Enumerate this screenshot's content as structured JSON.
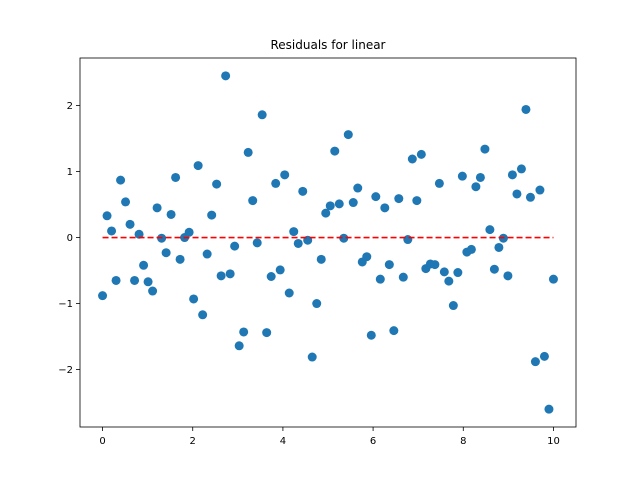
{
  "chart_data": {
    "type": "scatter",
    "title": "Residuals for linear",
    "xlabel": "",
    "ylabel": "",
    "xlim": [
      -0.5,
      10.5
    ],
    "ylim": [
      -2.87,
      2.72
    ],
    "xticks": [
      0,
      2,
      4,
      6,
      8,
      10
    ],
    "yticks": [
      -2,
      -1,
      0,
      1,
      2
    ],
    "xtick_labels": [
      "0",
      "2",
      "4",
      "6",
      "8",
      "10"
    ],
    "ytick_labels": [
      "−2",
      "−1",
      "0",
      "1",
      "2"
    ],
    "grid": false,
    "point_color": "#1f77b4",
    "reference_line": {
      "y": 0,
      "x_range": [
        0,
        10
      ],
      "color": "#ff0000",
      "style": "dashed"
    },
    "x": [
      0.0,
      0.1,
      0.2,
      0.3,
      0.4,
      0.51,
      0.61,
      0.71,
      0.81,
      0.91,
      1.01,
      1.11,
      1.21,
      1.31,
      1.41,
      1.52,
      1.62,
      1.72,
      1.82,
      1.92,
      2.02,
      2.12,
      2.22,
      2.32,
      2.42,
      2.53,
      2.63,
      2.73,
      2.83,
      2.93,
      3.03,
      3.13,
      3.23,
      3.33,
      3.43,
      3.54,
      3.64,
      3.74,
      3.84,
      3.94,
      4.04,
      4.14,
      4.24,
      4.34,
      4.44,
      4.55,
      4.65,
      4.75,
      4.85,
      4.95,
      5.05,
      5.15,
      5.25,
      5.35,
      5.45,
      5.56,
      5.66,
      5.76,
      5.86,
      5.96,
      6.06,
      6.16,
      6.26,
      6.36,
      6.46,
      6.57,
      6.67,
      6.77,
      6.87,
      6.97,
      7.07,
      7.17,
      7.27,
      7.37,
      7.47,
      7.58,
      7.68,
      7.78,
      7.88,
      7.98,
      8.08,
      8.18,
      8.28,
      8.38,
      8.48,
      8.59,
      8.69,
      8.79,
      8.89,
      8.99,
      9.09,
      9.19,
      9.29,
      9.39,
      9.49,
      9.6,
      9.7,
      9.8,
      9.9,
      10.0
    ],
    "y": [
      -0.88,
      0.33,
      0.1,
      -0.65,
      0.87,
      0.54,
      0.2,
      -0.65,
      0.05,
      -0.42,
      -0.67,
      -0.81,
      0.45,
      -0.01,
      -0.23,
      0.35,
      0.91,
      -0.33,
      0.0,
      0.08,
      -0.93,
      1.09,
      -1.17,
      -0.25,
      0.34,
      0.81,
      -0.58,
      2.45,
      -0.55,
      -0.13,
      -1.64,
      -1.43,
      1.29,
      0.56,
      -0.08,
      1.86,
      -1.44,
      -0.59,
      0.82,
      -0.49,
      0.95,
      -0.84,
      0.09,
      -0.09,
      0.7,
      -0.04,
      -1.81,
      -1.0,
      -0.33,
      0.37,
      0.48,
      1.31,
      0.51,
      -0.01,
      1.56,
      0.53,
      0.75,
      -0.37,
      -0.29,
      -1.48,
      0.62,
      -0.63,
      0.45,
      -0.41,
      -1.41,
      0.59,
      -0.6,
      -0.03,
      1.19,
      0.56,
      1.26,
      -0.47,
      -0.4,
      -0.41,
      0.82,
      -0.52,
      -0.66,
      -1.03,
      -0.53,
      0.93,
      -0.22,
      -0.18,
      0.77,
      0.91,
      1.34,
      0.12,
      -0.48,
      -0.15,
      -0.01,
      -0.58,
      0.95,
      0.66,
      1.04,
      1.94,
      0.61,
      -1.88,
      0.72,
      -1.8,
      -2.6,
      -0.63
    ]
  }
}
